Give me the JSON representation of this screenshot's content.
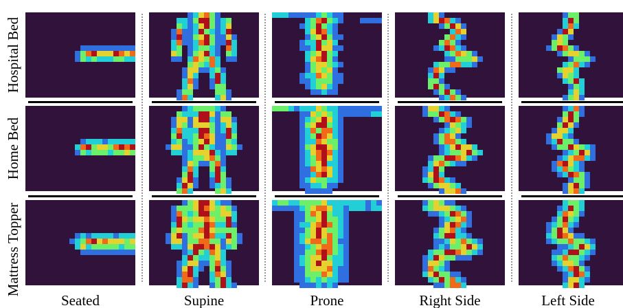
{
  "rows": [
    "Hospital Bed",
    "Home Bed",
    "Mattress Topper"
  ],
  "columns": [
    "Seated",
    "Supine",
    "Prone",
    "Right Side",
    "Left Side"
  ]
}
